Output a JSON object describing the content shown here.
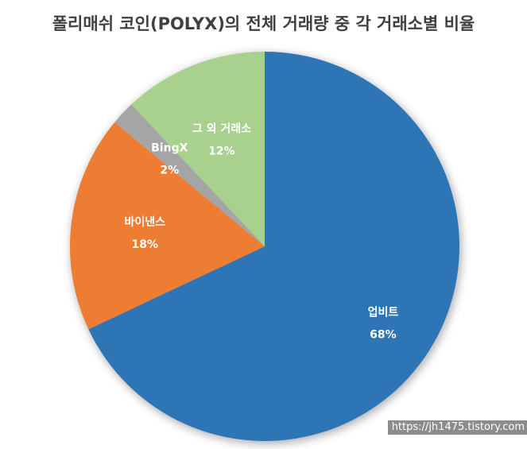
{
  "chart_data": {
    "type": "pie",
    "title": "폴리매쉬 코인(POLYX)의 전체 거래량 중 각 거래소별 비율",
    "categories": [
      "업비트",
      "바이낸스",
      "BingX",
      "그 외 거래소"
    ],
    "values": [
      68,
      18,
      2,
      12
    ],
    "value_labels": [
      "68%",
      "18%",
      "2%",
      "12%"
    ],
    "colors": [
      "#2E75B6",
      "#ED7D31",
      "#A5A5A5",
      "#A9D18E"
    ],
    "start": "12 o'clock",
    "direction": "clockwise",
    "legend": "none"
  },
  "watermark": "https://jh1475.tistory.com"
}
